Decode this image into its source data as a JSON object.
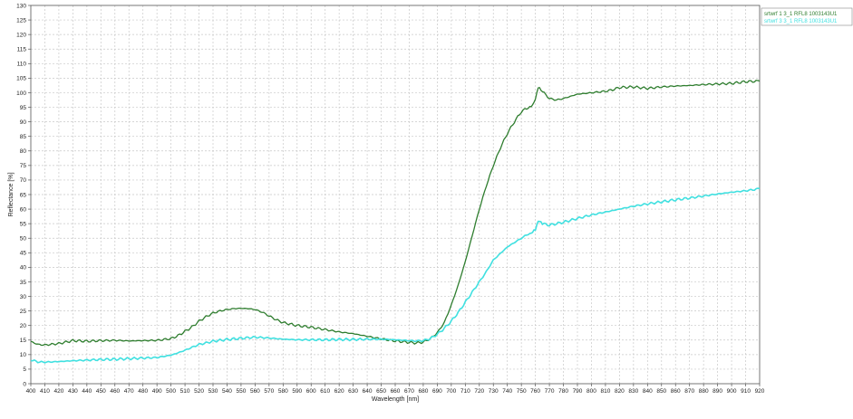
{
  "chart_data": {
    "type": "line",
    "xlabel": "Wavelength [nm]",
    "ylabel": "Reflectance [%]",
    "xlim": [
      400,
      920
    ],
    "ylim": [
      0,
      130
    ],
    "xticks": [
      400,
      410,
      420,
      430,
      440,
      450,
      460,
      470,
      480,
      490,
      500,
      510,
      520,
      530,
      540,
      550,
      560,
      570,
      580,
      590,
      600,
      610,
      620,
      630,
      640,
      650,
      660,
      670,
      680,
      690,
      700,
      710,
      720,
      730,
      740,
      750,
      760,
      770,
      780,
      790,
      800,
      810,
      820,
      830,
      840,
      850,
      860,
      870,
      880,
      890,
      900,
      910,
      920
    ],
    "yticks": [
      0,
      5,
      10,
      15,
      20,
      25,
      30,
      35,
      40,
      45,
      50,
      55,
      60,
      65,
      70,
      75,
      80,
      85,
      90,
      95,
      100,
      105,
      110,
      115,
      120,
      125,
      130
    ],
    "grid": true,
    "legend_position": "top-right",
    "series": [
      {
        "name": "srtwrf 1 3_1 RFL8 1003143U1",
        "color": "#2e7d2e",
        "x": [
          400,
          405,
          410,
          420,
          430,
          440,
          450,
          460,
          470,
          480,
          490,
          500,
          505,
          510,
          515,
          520,
          525,
          530,
          535,
          540,
          545,
          550,
          555,
          560,
          565,
          570,
          575,
          580,
          590,
          600,
          610,
          620,
          630,
          640,
          650,
          660,
          670,
          675,
          680,
          685,
          690,
          695,
          700,
          705,
          710,
          715,
          720,
          725,
          730,
          735,
          740,
          745,
          750,
          755,
          758,
          760,
          762,
          765,
          770,
          775,
          780,
          790,
          800,
          810,
          815,
          820,
          830,
          840,
          850,
          860,
          870,
          880,
          890,
          900,
          910,
          920
        ],
        "y": [
          14.5,
          13.5,
          13.3,
          13.8,
          14.8,
          14.6,
          14.8,
          14.9,
          14.7,
          14.8,
          14.9,
          15.5,
          16.5,
          18,
          19.5,
          21.5,
          23,
          24.3,
          25,
          25.5,
          25.8,
          25.9,
          25.8,
          25.5,
          24.6,
          23.3,
          22,
          21,
          20,
          19.4,
          18.6,
          17.8,
          17.2,
          16.3,
          15.4,
          14.7,
          14.2,
          14,
          14.3,
          15.5,
          17.5,
          21,
          27,
          34,
          42,
          51,
          60,
          68,
          75,
          81,
          86,
          90,
          93.5,
          95,
          95.5,
          98,
          101.8,
          100.5,
          98,
          97.5,
          98,
          99.5,
          100,
          100.5,
          101,
          101.8,
          102,
          101.5,
          102,
          102.3,
          102.5,
          102.8,
          103,
          103.2,
          103.8,
          104
        ]
      },
      {
        "name": "srtwrf 3 3_1 RFL8 1003143U1",
        "color": "#40e0e0",
        "x": [
          400,
          405,
          410,
          420,
          430,
          440,
          450,
          460,
          470,
          480,
          490,
          500,
          505,
          510,
          515,
          520,
          525,
          530,
          540,
          550,
          560,
          570,
          580,
          590,
          600,
          610,
          620,
          630,
          640,
          650,
          660,
          670,
          675,
          680,
          685,
          690,
          695,
          700,
          705,
          710,
          715,
          720,
          725,
          730,
          740,
          750,
          755,
          758,
          760,
          762,
          765,
          770,
          780,
          790,
          800,
          810,
          820,
          830,
          840,
          850,
          860,
          870,
          880,
          890,
          900,
          910,
          920
        ],
        "y": [
          8.2,
          7.5,
          7.4,
          7.6,
          7.9,
          8.1,
          8.3,
          8.4,
          8.6,
          8.8,
          9,
          9.8,
          10.6,
          11.5,
          12.5,
          13.5,
          14,
          14.6,
          15.2,
          15.6,
          16,
          15.7,
          15.3,
          15.1,
          15.1,
          15.1,
          15.2,
          15.2,
          15.3,
          15.3,
          15.1,
          14.8,
          14.7,
          14.8,
          15.5,
          17,
          19,
          21.5,
          24.5,
          28,
          31.5,
          35,
          38.5,
          42.5,
          47,
          50,
          51.5,
          52,
          53,
          56,
          55,
          54.5,
          55.5,
          56.8,
          58,
          59,
          60,
          61,
          61.8,
          62.5,
          63.2,
          63.8,
          64.5,
          65.2,
          65.8,
          66.3,
          67
        ]
      }
    ]
  }
}
